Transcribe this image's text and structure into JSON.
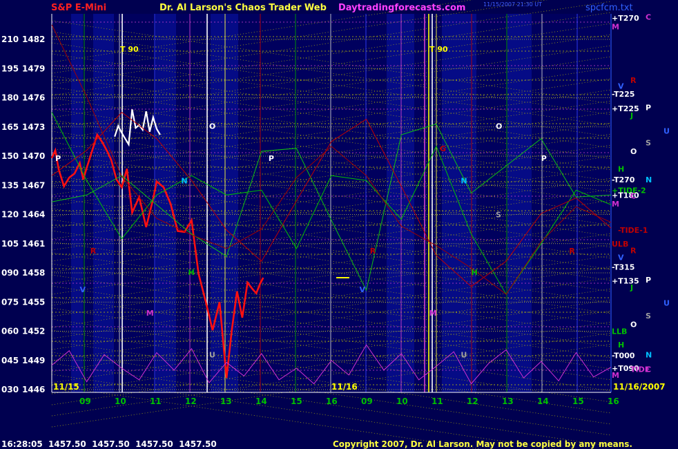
{
  "header": {
    "symbol": "S&P E-Mini",
    "title": "Dr. Al Larson's Chaos Trader Web",
    "site": "Daytradingforecasts.com",
    "stamp": "11/15/2007 21:30 UT",
    "file": "spcfcm.txt"
  },
  "footer": {
    "quote": "16:28:05  1457.50  1457.50  1457.50  1457.50",
    "copyright": "Copyright 2007, Dr. Al Larson. May not be copied by any means."
  },
  "chart_data": {
    "type": "line",
    "title": "S&P E-Mini",
    "y_axis_left": {
      "angle_labels": [
        "210",
        "195",
        "180",
        "165",
        "150",
        "135",
        "120",
        "105",
        "090",
        "075",
        "060",
        "045",
        "030"
      ],
      "price_labels": [
        "1482",
        "1479",
        "1476",
        "1473",
        "1470",
        "1467",
        "1464",
        "1461",
        "1458",
        "1455",
        "1452",
        "1449",
        "1446"
      ],
      "range": [
        1446,
        1482
      ]
    },
    "x_axis": {
      "hours_day1": [
        "09",
        "10",
        "11",
        "12",
        "13",
        "14",
        "15",
        "16"
      ],
      "hours_day2": [
        "09",
        "10",
        "11",
        "12",
        "13",
        "14",
        "15",
        "16"
      ],
      "date_day1": "11/15",
      "date_day2": "11/16",
      "date_end": "11/16/2007"
    },
    "series": [
      {
        "name": "price",
        "color": "#ff1010",
        "x": [
          0.0,
          0.1,
          0.2,
          0.35,
          0.5,
          0.65,
          0.8,
          0.9,
          1.0,
          1.15,
          1.3,
          1.45,
          1.6,
          1.7,
          1.85,
          2.0,
          2.15,
          2.3,
          2.5,
          2.7,
          2.9,
          3.0,
          3.2,
          3.4,
          3.6,
          3.8,
          4.0,
          4.2,
          4.4,
          4.6,
          4.8,
          5.0,
          5.15,
          5.3,
          5.45,
          5.6,
          5.75,
          5.85,
          5.95,
          6.05
        ],
        "y": [
          1469.8,
          1470.6,
          1468.6,
          1466.9,
          1467.8,
          1468.2,
          1469.3,
          1467.6,
          1468.8,
          1470.5,
          1472.2,
          1471.4,
          1470.4,
          1469.6,
          1467.6,
          1466.8,
          1468.7,
          1464.2,
          1465.8,
          1462.7,
          1465.6,
          1467.4,
          1466.8,
          1465.1,
          1462.3,
          1462.2,
          1463.4,
          1457.9,
          1455.1,
          1452.1,
          1455.0,
          1447.2,
          1452.1,
          1456.1,
          1453.4,
          1457.0,
          1456.3,
          1455.9,
          1456.8,
          1457.5
        ]
      },
      {
        "name": "price-highlight",
        "color": "#ffffff",
        "x": [
          1.8,
          1.9,
          2.0,
          2.1,
          2.2,
          2.3,
          2.4,
          2.5,
          2.6,
          2.7,
          2.8,
          2.9,
          3.0,
          3.1
        ],
        "y": [
          1472.0,
          1473.1,
          1472.4,
          1471.8,
          1471.2,
          1474.8,
          1472.9,
          1473.2,
          1472.7,
          1474.6,
          1472.5,
          1474.0,
          1472.8,
          1472.2
        ]
      },
      {
        "name": "forecast-green-1",
        "color": "#00c000",
        "x": [
          0,
          1,
          2,
          3,
          4,
          5,
          6,
          7,
          8,
          9,
          10,
          11,
          12,
          13,
          14,
          15,
          16
        ],
        "y": [
          1474.5,
          1467.5,
          1461.5,
          1466.0,
          1468.0,
          1466.0,
          1466.5,
          1460.5,
          1468.0,
          1467.5,
          1463.5,
          1471.0,
          1462.0,
          1455.8,
          1461.0,
          1466.5,
          1465.0
        ]
      },
      {
        "name": "forecast-green-2",
        "color": "#10c010",
        "x": [
          0,
          1,
          2,
          3,
          4,
          5,
          6,
          7,
          8,
          9,
          10,
          11,
          12,
          13,
          14,
          15,
          16
        ],
        "y": [
          1465.3,
          1466.0,
          1468.0,
          1465.0,
          1462.0,
          1459.7,
          1470.5,
          1470.8,
          1463.4,
          1456.2,
          1472.2,
          1473.3,
          1466.2,
          1469.0,
          1471.8,
          1465.8,
          1466.0
        ]
      },
      {
        "name": "forecast-red-1",
        "color": "#c00000",
        "x": [
          0,
          1,
          2,
          3,
          4,
          5,
          6,
          7,
          8,
          9,
          10,
          11,
          12,
          13,
          14,
          15,
          16
        ],
        "y": [
          1468.0,
          1470.6,
          1474.5,
          1471.8,
          1467.5,
          1462.4,
          1459.2,
          1465.4,
          1471.5,
          1473.8,
          1466.9,
          1459.8,
          1456.6,
          1459.2,
          1464.1,
          1465.7,
          1462.6
        ]
      },
      {
        "name": "forecast-red-2",
        "color": "#a00000",
        "x": [
          0,
          1,
          2,
          3,
          4,
          5,
          6,
          7,
          8,
          9,
          10,
          11,
          12,
          13,
          14,
          15,
          16
        ],
        "y": [
          1483.5,
          1476.1,
          1467.9,
          1463.6,
          1461.9,
          1460.5,
          1462.5,
          1467.8,
          1471.0,
          1468.0,
          1462.8,
          1460.8,
          1458.5,
          1455.8,
          1461.2,
          1464.8,
          1463.2
        ]
      },
      {
        "name": "tide-magenta",
        "color": "#d030d0",
        "x": [
          0,
          0.5,
          1,
          1.5,
          2,
          2.5,
          3,
          3.5,
          4,
          4.5,
          5,
          5.5,
          6,
          6.5,
          7,
          7.5,
          8,
          8.5,
          9,
          9.5,
          10,
          10.5,
          11,
          11.5,
          12,
          12.5,
          13,
          13.5,
          14,
          14.5,
          15,
          15.5,
          16
        ],
        "y": [
          1448.5,
          1450.0,
          1446.8,
          1449.6,
          1448.2,
          1447.0,
          1449.8,
          1448.0,
          1450.2,
          1446.7,
          1448.8,
          1447.4,
          1449.7,
          1447.0,
          1448.2,
          1446.6,
          1449.0,
          1447.5,
          1450.6,
          1448.0,
          1449.7,
          1447.0,
          1448.4,
          1449.9,
          1446.6,
          1448.7,
          1450.1,
          1447.2,
          1448.9,
          1446.9,
          1449.8,
          1447.3,
          1448.3
        ]
      }
    ],
    "markers_top": [
      "T 90",
      "T 90"
    ],
    "chart_letters": [
      {
        "text": "P",
        "x": 0.1,
        "y": 1469.5,
        "color": "#ffffff"
      },
      {
        "text": "O",
        "x": 4.5,
        "y": 1472.8,
        "color": "#ffffff"
      },
      {
        "text": "P",
        "x": 6.2,
        "y": 1469.5,
        "color": "#ffffff"
      },
      {
        "text": "O",
        "x": 12.7,
        "y": 1472.8,
        "color": "#ffffff"
      },
      {
        "text": "P",
        "x": 14.0,
        "y": 1469.5,
        "color": "#ffffff"
      },
      {
        "text": "N",
        "x": 3.7,
        "y": 1467.2,
        "color": "#00c0ff"
      },
      {
        "text": "N",
        "x": 11.7,
        "y": 1467.2,
        "color": "#00c0ff"
      },
      {
        "text": "H",
        "x": 3.9,
        "y": 1457.8,
        "color": "#00c000"
      },
      {
        "text": "H",
        "x": 12.0,
        "y": 1457.8,
        "color": "#00c000"
      },
      {
        "text": "R",
        "x": 1.1,
        "y": 1460.0,
        "color": "#c00000"
      },
      {
        "text": "R",
        "x": 9.1,
        "y": 1460.0,
        "color": "#c00000"
      },
      {
        "text": "R",
        "x": 14.8,
        "y": 1460.0,
        "color": "#c00000"
      },
      {
        "text": "G",
        "x": 11.1,
        "y": 1470.5,
        "color": "#c00000"
      },
      {
        "text": "M",
        "x": 2.7,
        "y": 1453.6,
        "color": "#d030d0"
      },
      {
        "text": "M",
        "x": 10.8,
        "y": 1453.6,
        "color": "#d030d0"
      },
      {
        "text": "V",
        "x": 0.8,
        "y": 1456.0,
        "color": "#3060ff"
      },
      {
        "text": "V",
        "x": 8.8,
        "y": 1456.0,
        "color": "#3060ff"
      },
      {
        "text": "S",
        "x": 12.7,
        "y": 1463.7,
        "color": "#a0a0a0"
      },
      {
        "text": "U",
        "x": 4.5,
        "y": 1449.3,
        "color": "#a0a0a0"
      },
      {
        "text": "U",
        "x": 11.7,
        "y": 1449.3,
        "color": "#a0a0a0"
      }
    ],
    "right_labels": [
      {
        "text": "+T270",
        "y": 1484.2,
        "color": "#ffffff"
      },
      {
        "text": "M",
        "y": 1483.3,
        "color": "#d030d0"
      },
      {
        "text": "C",
        "y": 1484.3,
        "color": "#d030d0",
        "col": 2
      },
      {
        "text": "R",
        "y": 1477.8,
        "color": "#c00000",
        "col": 1
      },
      {
        "text": "V",
        "y": 1477.2,
        "color": "#3060ff",
        "col": 0
      },
      {
        "text": "-T225",
        "y": 1476.4,
        "color": "#ffffff"
      },
      {
        "text": "+T225",
        "y": 1474.9,
        "color": "#ffffff"
      },
      {
        "text": "J",
        "y": 1474.2,
        "color": "#00c000",
        "col": 1
      },
      {
        "text": "P",
        "y": 1475.0,
        "color": "#ffffff",
        "col": 2
      },
      {
        "text": "U",
        "y": 1472.6,
        "color": "#3060ff",
        "col": 3
      },
      {
        "text": "S",
        "y": 1471.4,
        "color": "#a0a0a0",
        "col": 2
      },
      {
        "text": "O",
        "y": 1470.5,
        "color": "#ffffff",
        "col": 1
      },
      {
        "text": "H",
        "y": 1468.7,
        "color": "#00c000",
        "col": 0
      },
      {
        "text": "N",
        "y": 1467.6,
        "color": "#00c0ff",
        "col": 2
      },
      {
        "text": "-T270",
        "y": 1467.6,
        "color": "#ffffff"
      },
      {
        "text": "+TIDE-2",
        "y": 1466.5,
        "color": "#00c000"
      },
      {
        "text": "+T180",
        "y": 1466.0,
        "color": "#ffffff"
      },
      {
        "text": "C",
        "y": 1465.9,
        "color": "#d030d0",
        "col": 1
      },
      {
        "text": "M",
        "y": 1465.1,
        "color": "#d030d0"
      },
      {
        "text": "-TIDE-1",
        "y": 1462.4,
        "color": "#c00000",
        "col": 0
      },
      {
        "text": "ULB",
        "y": 1461.0,
        "color": "#c00000"
      },
      {
        "text": "R",
        "y": 1460.3,
        "color": "#c00000",
        "col": 1
      },
      {
        "text": "V",
        "y": 1459.6,
        "color": "#3060ff",
        "col": 0
      },
      {
        "text": "-T315",
        "y": 1458.6,
        "color": "#ffffff"
      },
      {
        "text": "+T135",
        "y": 1457.2,
        "color": "#ffffff"
      },
      {
        "text": "J",
        "y": 1456.5,
        "color": "#00c000",
        "col": 1
      },
      {
        "text": "P",
        "y": 1457.3,
        "color": "#ffffff",
        "col": 2
      },
      {
        "text": "U",
        "y": 1454.9,
        "color": "#3060ff",
        "col": 3
      },
      {
        "text": "S",
        "y": 1453.6,
        "color": "#a0a0a0",
        "col": 2
      },
      {
        "text": "O",
        "y": 1452.7,
        "color": "#ffffff",
        "col": 1
      },
      {
        "text": "LLB",
        "y": 1452.0,
        "color": "#00c000"
      },
      {
        "text": "H",
        "y": 1450.6,
        "color": "#00c000",
        "col": 0
      },
      {
        "text": "-T000",
        "y": 1449.5,
        "color": "#ffffff"
      },
      {
        "text": "N",
        "y": 1449.6,
        "color": "#00c0ff",
        "col": 2
      },
      {
        "text": "+T090",
        "y": 1448.2,
        "color": "#ffffff"
      },
      {
        "text": "TIDE",
        "y": 1448.1,
        "color": "#d030d0",
        "col": 1
      },
      {
        "text": "C",
        "y": 1448.1,
        "color": "#d030d0",
        "col": 2
      },
      {
        "text": "M",
        "y": 1447.5,
        "color": "#d030d0"
      }
    ],
    "grid": true,
    "colors": {
      "background": "#000050",
      "price": "#ff1010",
      "grid_dotted": "#d0d000",
      "axis_text": "#ffffff",
      "hour_labels": "#00c000",
      "date_labels": "#ffff00"
    }
  }
}
